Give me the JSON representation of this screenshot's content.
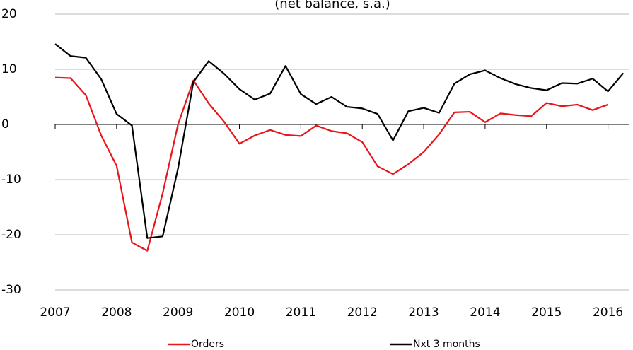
{
  "chart_data": {
    "type": "line",
    "subtitle": "(net balance, s.a.)",
    "x": [
      2007,
      2007.25,
      2007.5,
      2007.75,
      2008,
      2008.25,
      2008.5,
      2008.75,
      2009,
      2009.25,
      2009.5,
      2009.75,
      2010,
      2010.25,
      2010.5,
      2010.75,
      2011,
      2011.25,
      2011.5,
      2011.75,
      2012,
      2012.25,
      2012.5,
      2012.75,
      2013,
      2013.25,
      2013.5,
      2013.75,
      2014,
      2014.25,
      2014.5,
      2014.75,
      2015,
      2015.25,
      2015.5,
      2015.75,
      2016,
      2016.25
    ],
    "series": [
      {
        "name": "Orders",
        "color": "#e8151b",
        "values": [
          8.5,
          8.4,
          5.3,
          -2,
          -7.5,
          -21.4,
          -22.9,
          -12.5,
          0,
          8,
          3.8,
          0.5,
          -3.5,
          -2,
          -1,
          -1.9,
          -2.1,
          -0.2,
          -1.2,
          -1.6,
          -3.2,
          -7.6,
          -9,
          -7.2,
          -5,
          -1.8,
          2.2,
          2.3,
          0.4,
          2,
          1.7,
          1.5,
          3.9,
          3.3,
          3.6,
          2.6,
          3.6,
          null
        ]
      },
      {
        "name": "Nxt 3 months",
        "color": "#000000",
        "values": [
          14.6,
          12.4,
          12.1,
          8.2,
          1.9,
          -0.2,
          -20.6,
          -20.3,
          -8,
          7.7,
          11.5,
          9.2,
          6.4,
          4.5,
          5.6,
          10.6,
          5.5,
          3.7,
          5,
          3.2,
          2.9,
          1.9,
          -2.9,
          2.4,
          3,
          2.1,
          7.4,
          9.1,
          9.8,
          8.4,
          7.3,
          6.6,
          6.2,
          7.5,
          7.4,
          8.3,
          6,
          9.3
        ]
      }
    ],
    "xlim": [
      2007,
      2016.35
    ],
    "xticks": [
      2007,
      2008,
      2009,
      2010,
      2011,
      2012,
      2013,
      2014,
      2015,
      2016
    ],
    "ylim": [
      -30,
      20
    ],
    "yticks": [
      -30,
      -20,
      -10,
      0,
      10,
      20
    ],
    "grid": true
  }
}
